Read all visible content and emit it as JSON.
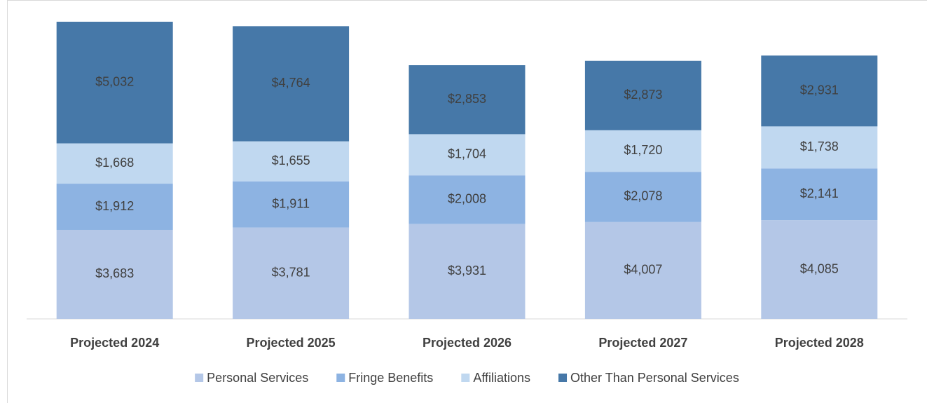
{
  "chart_data": {
    "type": "stacked-bar",
    "categories": [
      "Projected 2024",
      "Projected 2025",
      "Projected 2026",
      "Projected 2027",
      "Projected 2028"
    ],
    "series": [
      {
        "name": "Personal Services",
        "color": "#b4c7e7",
        "values": [
          3683,
          3781,
          3931,
          4007,
          4085
        ],
        "value_labels": [
          "$3,683",
          "$3,781",
          "$3,931",
          "$4,007",
          "$4,085"
        ]
      },
      {
        "name": "Fringe Benefits",
        "color": "#8db3e2",
        "values": [
          1912,
          1911,
          2008,
          2078,
          2141
        ],
        "value_labels": [
          "$1,912",
          "$1,911",
          "$2,008",
          "$2,078",
          "$2,141"
        ]
      },
      {
        "name": "Affiliations",
        "color": "#c0d8f0",
        "values": [
          1668,
          1655,
          1704,
          1720,
          1738
        ],
        "value_labels": [
          "$1,668",
          "$1,655",
          "$1,704",
          "$1,720",
          "$1,738"
        ]
      },
      {
        "name": "Other Than Personal Services",
        "color": "#4678a8",
        "values": [
          5032,
          4764,
          2853,
          2873,
          2931
        ],
        "value_labels": [
          "$5,032",
          "$4,764",
          "$2,853",
          "$2,873",
          "$2,931"
        ]
      }
    ],
    "legend": "bottom"
  }
}
